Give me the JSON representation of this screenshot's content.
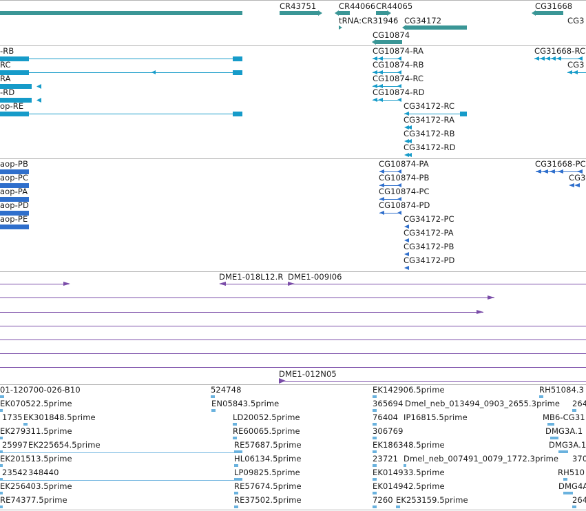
{
  "colors": {
    "teal": "#3a9696",
    "cyan": "#169bc9",
    "blue": "#2f6fcc",
    "purple": "#7a4ca8",
    "lightblue": "#6ab2de",
    "separator": "#b4b4b4"
  },
  "tracks": {
    "gene_span": {
      "labels": [
        "CR43751",
        "CR44066",
        "CR44065",
        "tRNA:CR31946",
        "CG34172",
        "CG10874",
        "CG31668",
        "CG3"
      ]
    },
    "transcripts": {
      "labels": [
        "-RB",
        "RC",
        "RA",
        "-RD",
        "op-RE",
        "CG10874-RA",
        "CG10874-RB",
        "CG10874-RC",
        "CG10874-RD",
        "CG34172-RC",
        "CG34172-RA",
        "CG34172-RB",
        "CG34172-RD",
        "CG31668-RC",
        "CG3"
      ]
    },
    "proteins": {
      "labels": [
        "aop-PB",
        "aop-PC",
        "aop-PA",
        "aop-PD",
        "aop-PE",
        "CG10874-PA",
        "CG10874-PB",
        "CG10874-PC",
        "CG10874-PD",
        "CG34172-PC",
        "CG34172-PA",
        "CG34172-PB",
        "CG34172-PD",
        "CG31668-PC",
        "CG3"
      ]
    },
    "clones": {
      "labels": [
        "DME1-018L12.R",
        "DME1-009I06",
        "DME1-012N05"
      ]
    },
    "ests": {
      "labels": [
        "01-120700-026-B10",
        "524748",
        "EK142906.5prime",
        "RH51084.3",
        "EK070522.5prime",
        "EN05843.5prime",
        "365694",
        "Dmel_neb_013494_0903_2655.3prime",
        "264",
        "1735",
        "EK301848.5prime",
        "LD20052.5prime",
        "76404",
        "IP16815.5prime",
        "MB6-CG31",
        "EK279311.5prime",
        "RE60065.5prime",
        "306769",
        "DMG3A.1",
        "25997",
        "EK225654.5prime",
        "RE57687.5prime",
        "EK186348.5prime",
        "DMG3A.1",
        "EK201513.5prime",
        "HL06134.5prime",
        "23721",
        "Dmel_neb_007491_0079_1772.3prime",
        "370",
        "23542",
        "348440",
        "LP09825.5prime",
        "EK014933.5prime",
        "RH510",
        "EK256403.5prime",
        "RE57674.5prime",
        "EK014942.5prime",
        "DMG4A",
        "RE74377.5prime",
        "RE37502.5prime",
        "7260",
        "EK253159.5prime",
        "264"
      ]
    }
  }
}
